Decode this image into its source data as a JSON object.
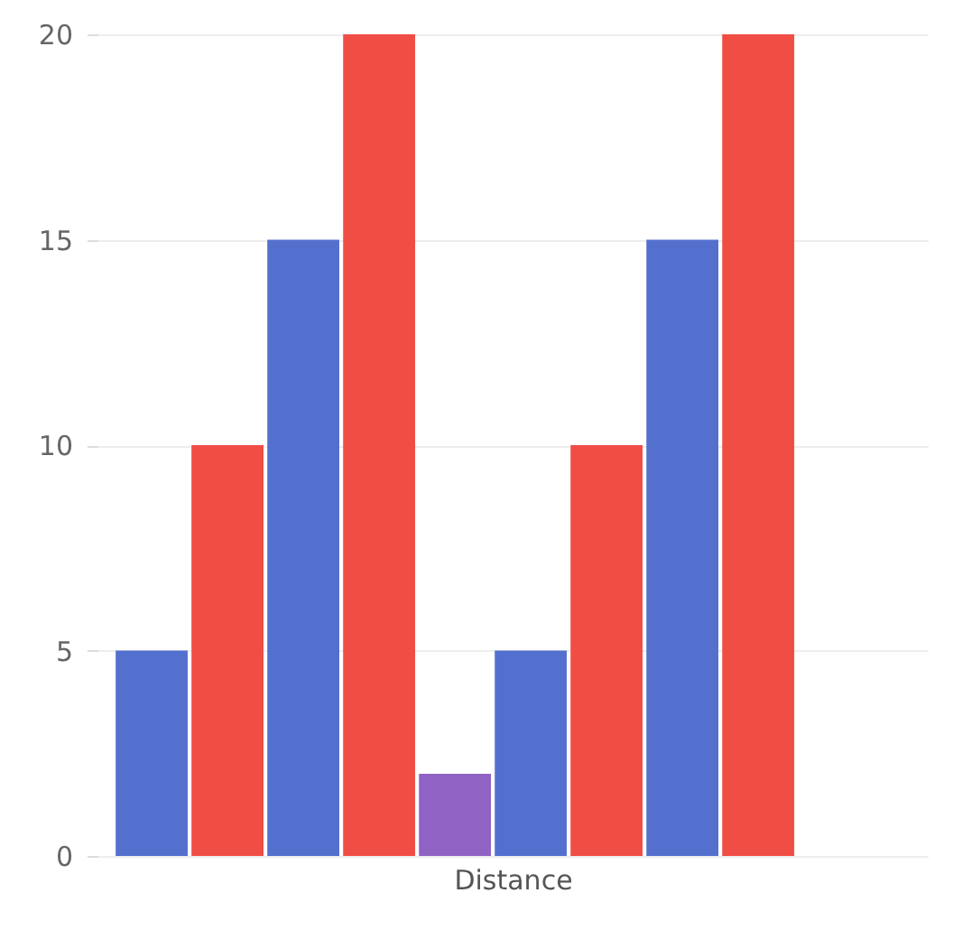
{
  "chart_data": {
    "type": "bar",
    "xlabel": "Distance",
    "categories": [
      null,
      null,
      null,
      null,
      null,
      null,
      null,
      null,
      null
    ],
    "values": [
      5,
      10,
      15,
      20,
      2,
      5,
      10,
      15,
      20
    ],
    "colors": [
      "#5470cf",
      "#f04d45",
      "#5470cf",
      "#f04d45",
      "#9062c4",
      "#5470cf",
      "#f04d45",
      "#5470cf",
      "#f04d45"
    ],
    "ylim": [
      0,
      20
    ],
    "yticks": [
      0,
      5,
      10,
      15,
      20
    ],
    "grid": "y",
    "tick_labels": "y"
  }
}
